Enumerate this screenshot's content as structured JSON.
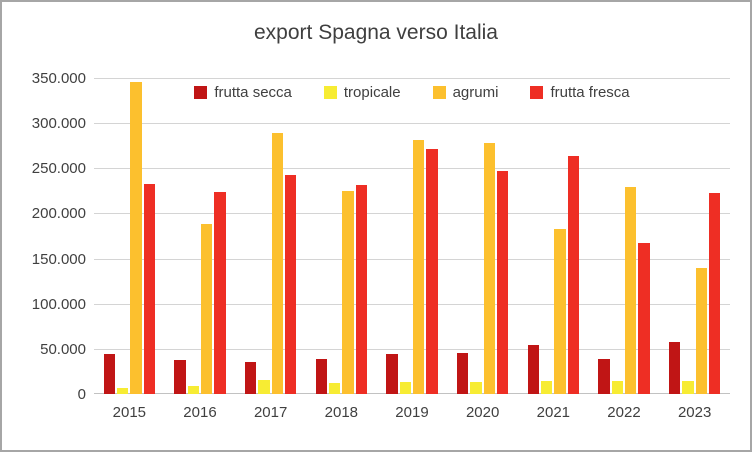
{
  "window": {
    "background": "#ffffff",
    "border_color": "#a6a6a6"
  },
  "chart_data": {
    "type": "bar",
    "title": "export Spagna verso Italia",
    "categories": [
      "2015",
      "2016",
      "2017",
      "2018",
      "2019",
      "2020",
      "2021",
      "2022",
      "2023"
    ],
    "series": [
      {
        "name": "frutta secca",
        "color": "#c01515",
        "values": [
          44000,
          38000,
          36000,
          39000,
          44000,
          45000,
          54000,
          39000,
          58000
        ]
      },
      {
        "name": "tropicale",
        "color": "#f7ec33",
        "values": [
          7000,
          9000,
          15000,
          12000,
          13000,
          13000,
          14000,
          14000,
          14000
        ]
      },
      {
        "name": "agrumi",
        "color": "#fcc02e",
        "values": [
          346000,
          188000,
          289000,
          225000,
          281000,
          278000,
          183000,
          229000,
          140000
        ]
      },
      {
        "name": "frutta fresca",
        "color": "#ee2e24",
        "values": [
          233000,
          224000,
          243000,
          231000,
          271000,
          247000,
          264000,
          167000,
          223000
        ]
      }
    ],
    "xlabel": "",
    "ylabel": "",
    "ylim": [
      0,
      350000
    ],
    "ytick_step": 50000,
    "ytick_labels": [
      "0",
      "50.000",
      "100.000",
      "150.000",
      "200.000",
      "250.000",
      "300.000",
      "350.000"
    ],
    "grid": true,
    "legend_position": "top-inside",
    "text_color": "#404040",
    "gridline_color": "#d4d4d4",
    "axisline_color": "#c2c2c2"
  }
}
